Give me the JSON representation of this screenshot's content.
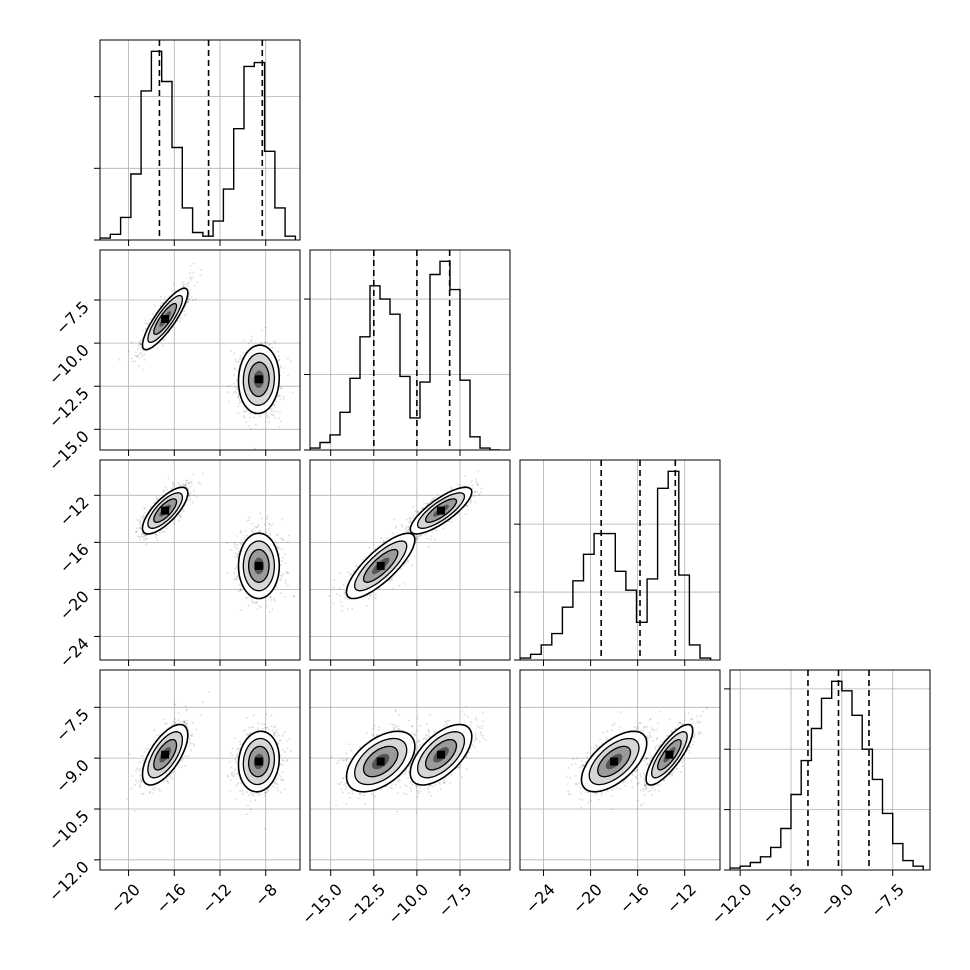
{
  "chart_data": {
    "type": "corner",
    "title": "",
    "grid": true,
    "params": [
      {
        "range": [
          -22.5,
          -5.0
        ],
        "ticks": [
          -20,
          -16,
          -12,
          -8
        ],
        "tick_labels": [
          "−20",
          "−16",
          "−12",
          "−8"
        ],
        "quantile_lines": [
          -17.3,
          -13.0,
          -8.3
        ],
        "hist": {
          "edges": [
            -22.5,
            -21.6,
            -20.7,
            -19.8,
            -18.9,
            -18.0,
            -17.1,
            -16.2,
            -15.3,
            -14.4,
            -13.5,
            -12.6,
            -11.7,
            -10.8,
            -9.9,
            -9.0,
            -8.1,
            -7.2,
            -6.3,
            -5.4
          ],
          "counts": [
            0.01,
            0.03,
            0.12,
            0.35,
            0.79,
            1.0,
            0.84,
            0.49,
            0.17,
            0.04,
            0.02,
            0.1,
            0.27,
            0.59,
            0.92,
            0.94,
            0.47,
            0.17,
            0.02
          ]
        },
        "hist_ylim": [
          0,
          1.06
        ],
        "hist_yticks": [
          0.0,
          0.38,
          0.76
        ]
      },
      {
        "range": [
          -16.2,
          -4.6
        ],
        "ticks": [
          -15.0,
          -12.5,
          -10.0,
          -7.5
        ],
        "tick_labels": [
          "−15.0",
          "−12.5",
          "−10.0",
          "−7.5"
        ],
        "quantile_lines": [
          -12.5,
          -10.0,
          -8.1
        ],
        "hist": {
          "edges": [
            -16.2,
            -15.62,
            -15.04,
            -14.46,
            -13.88,
            -13.3,
            -12.72,
            -12.14,
            -11.56,
            -10.98,
            -10.4,
            -9.82,
            -9.24,
            -8.66,
            -8.08,
            -7.5,
            -6.92,
            -6.34,
            -5.76,
            -5.18
          ],
          "counts": [
            0.01,
            0.04,
            0.08,
            0.2,
            0.38,
            0.6,
            0.87,
            0.8,
            0.72,
            0.39,
            0.17,
            0.36,
            0.93,
            1.0,
            0.85,
            0.37,
            0.07,
            0.01,
            0.0
          ]
        },
        "hist_ylim": [
          0,
          1.06
        ],
        "hist_yticks": [
          0.0,
          0.4,
          0.8
        ]
      },
      {
        "range": [
          -26.0,
          -9.0
        ],
        "ticks": [
          -24,
          -20,
          -16,
          -12
        ],
        "tick_labels": [
          "−24",
          "−20",
          "−16",
          "−12"
        ],
        "quantile_lines": [
          -19.1,
          -15.8,
          -12.8
        ],
        "hist": {
          "edges": [
            -26.0,
            -25.1,
            -24.2,
            -23.3,
            -22.4,
            -21.5,
            -20.6,
            -19.7,
            -18.8,
            -17.9,
            -17.0,
            -16.1,
            -15.2,
            -14.3,
            -13.4,
            -12.5,
            -11.6,
            -10.7,
            -9.8
          ],
          "counts": [
            0.01,
            0.03,
            0.08,
            0.14,
            0.28,
            0.42,
            0.56,
            0.67,
            0.67,
            0.47,
            0.37,
            0.2,
            0.43,
            0.91,
            1.0,
            0.45,
            0.08,
            0.01
          ]
        },
        "hist_ylim": [
          0,
          1.06
        ],
        "hist_yticks": [
          0.0,
          0.36,
          0.72
        ]
      },
      {
        "range": [
          -12.3,
          -6.4
        ],
        "ticks": [
          -12.0,
          -10.5,
          -9.0,
          -7.5
        ],
        "tick_labels": [
          "−12.0",
          "−10.5",
          "−9.0",
          "−7.5"
        ],
        "quantile_lines": [
          -10.0,
          -9.1,
          -8.2
        ],
        "hist": {
          "edges": [
            -12.3,
            -12.0,
            -11.7,
            -11.4,
            -11.1,
            -10.8,
            -10.5,
            -10.2,
            -9.9,
            -9.6,
            -9.3,
            -9.0,
            -8.7,
            -8.4,
            -8.1,
            -7.8,
            -7.5,
            -7.2,
            -6.9,
            -6.6
          ],
          "counts": [
            0.01,
            0.02,
            0.04,
            0.07,
            0.12,
            0.22,
            0.4,
            0.58,
            0.75,
            0.91,
            1.0,
            0.95,
            0.82,
            0.64,
            0.48,
            0.3,
            0.14,
            0.05,
            0.02
          ]
        },
        "hist_ylim": [
          0,
          1.06
        ],
        "hist_yticks": [
          0.0,
          0.32,
          0.64,
          0.96
        ]
      }
    ],
    "components": [
      {
        "mean": [
          -16.8,
          -8.6,
          -13.3,
          -8.9
        ],
        "sd": [
          1.0,
          0.9,
          1.0,
          0.45
        ],
        "corr": [
          [
            1,
            0.85,
            0.75,
            0.65
          ],
          [
            0.85,
            1,
            0.8,
            0.6
          ],
          [
            0.75,
            0.8,
            1,
            0.8
          ],
          [
            0.65,
            0.6,
            0.8,
            1
          ]
        ]
      },
      {
        "mean": [
          -8.6,
          -12.1,
          -18.0,
          -9.1
        ],
        "sd": [
          0.9,
          1.0,
          1.4,
          0.45
        ],
        "corr": [
          [
            1,
            0.05,
            0.0,
            0.1
          ],
          [
            0.05,
            1,
            0.8,
            0.5
          ],
          [
            0.0,
            0.8,
            1,
            0.6
          ],
          [
            0.1,
            0.5,
            0.6,
            1
          ]
        ]
      }
    ]
  }
}
